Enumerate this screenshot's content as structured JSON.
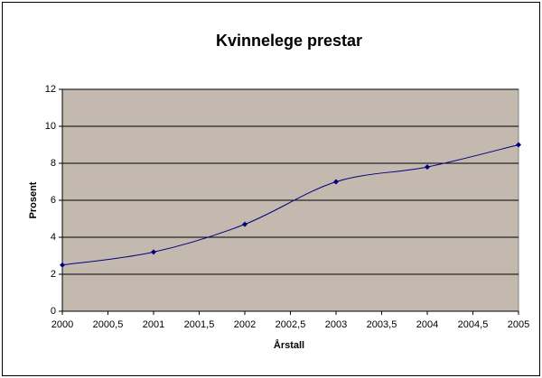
{
  "chart_data": {
    "type": "line",
    "title": "Kvinnelege prestar",
    "x_label": "Årstall",
    "y_label": "Prosent",
    "x": [
      2000,
      2001,
      2002,
      2003,
      2004,
      2005
    ],
    "series": [
      {
        "color": "#000080",
        "values": [
          2.5,
          3.2,
          4.7,
          7.0,
          7.8,
          9.0
        ]
      }
    ],
    "smooth": true,
    "marker": "diamond",
    "xlim": [
      2000,
      2005
    ],
    "xticks": [
      2000,
      {
        "value": 2000.5,
        "label": "2000,5"
      },
      2001,
      {
        "value": 2001.5,
        "label": "2001,5"
      },
      2002,
      {
        "value": 2002.5,
        "label": "2002,5"
      },
      2003,
      {
        "value": 2003.5,
        "label": "2003,5"
      },
      2004,
      {
        "value": 2004.5,
        "label": "2004,5"
      },
      2005
    ],
    "ylim": [
      0,
      12
    ],
    "yticks": [
      0,
      2,
      4,
      6,
      8,
      10,
      12
    ],
    "grid": true,
    "plot_background": "#c4b9ae"
  }
}
